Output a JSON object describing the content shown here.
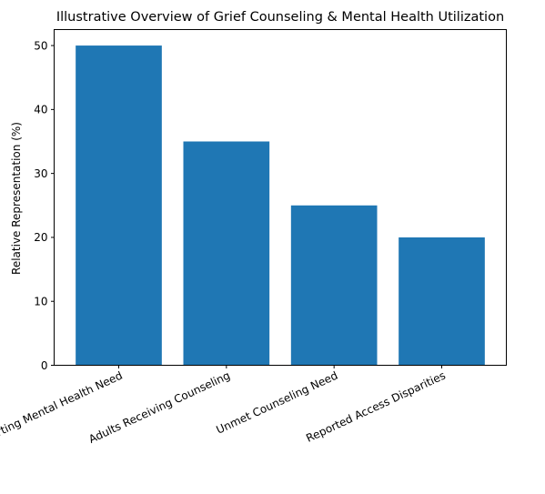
{
  "chart_data": {
    "type": "bar",
    "title": "Illustrative Overview of Grief Counseling & Mental Health Utilization",
    "xlabel": "",
    "ylabel": "Relative Representation (%)",
    "categories": [
      "Adults Reporting Mental Health Need",
      "Adults Receiving Counseling",
      "Unmet Counseling Need",
      "Reported Access Disparities"
    ],
    "values": [
      50,
      35,
      25,
      20
    ],
    "ylim": [
      0,
      52.5
    ],
    "yticks": [
      0,
      10,
      20,
      30,
      40,
      50
    ],
    "grid": false,
    "legend": "none",
    "bar_color": "#1f77b4"
  }
}
